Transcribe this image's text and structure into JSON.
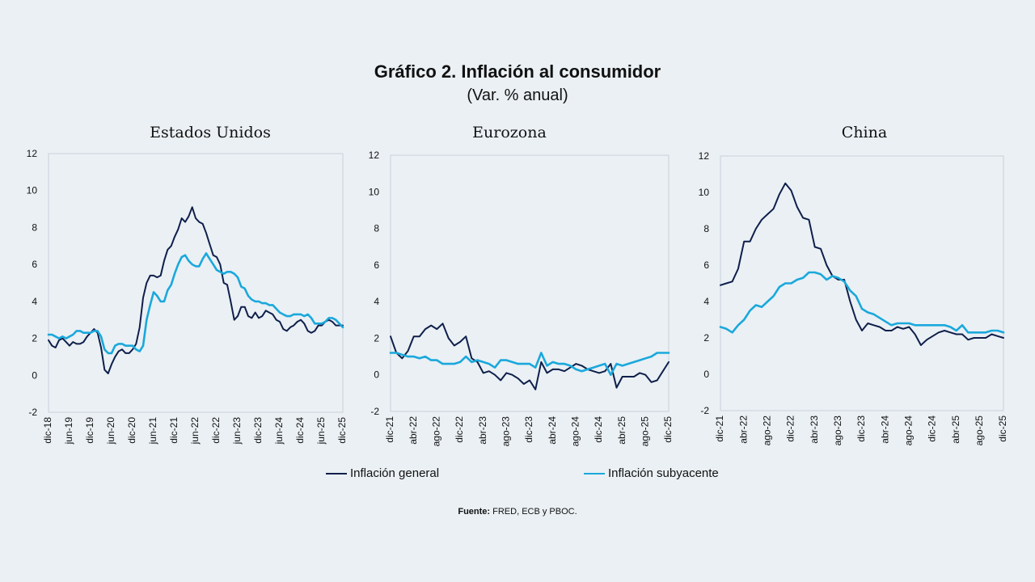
{
  "header": {
    "title": "Gráfico 2. Inflación al consumidor",
    "subtitle": "(Var. % anual)"
  },
  "legend": {
    "general": "Inflación general",
    "core": "Inflación subyacente"
  },
  "source": {
    "label": "Fuente:",
    "text": " FRED, ECB y PBOC."
  },
  "colors": {
    "general": "#0f1f4b",
    "core": "#1aa8dc",
    "background": "#eaf0f4",
    "plot_border": "#c9d1d8"
  },
  "chart_data": [
    {
      "type": "line",
      "title": "Estados Unidos",
      "ylim": [
        -2,
        12
      ],
      "yticks": [
        -2,
        0,
        2,
        4,
        6,
        8,
        10,
        12
      ],
      "x_start": "dic-18",
      "x_end": "dic-25",
      "n_months": 85,
      "xtick_labels": [
        "dic-18",
        "jun-19",
        "dic-19",
        "jun-20",
        "dic-20",
        "jun-21",
        "dic-21",
        "jun-22",
        "dic-22",
        "jun-23",
        "dic-23",
        "jun-24",
        "dic-24",
        "jun-25",
        "dic-25"
      ],
      "grid": false,
      "series": [
        {
          "name": "Inflación general",
          "values": [
            1.9,
            1.6,
            1.5,
            1.9,
            2.0,
            1.8,
            1.6,
            1.8,
            1.7,
            1.7,
            1.8,
            2.1,
            2.3,
            2.5,
            2.3,
            1.5,
            0.3,
            0.1,
            0.6,
            1.0,
            1.3,
            1.4,
            1.2,
            1.2,
            1.4,
            1.7,
            2.6,
            4.2,
            5.0,
            5.4,
            5.4,
            5.3,
            5.4,
            6.2,
            6.8,
            7.0,
            7.5,
            7.9,
            8.5,
            8.3,
            8.6,
            9.1,
            8.5,
            8.3,
            8.2,
            7.7,
            7.1,
            6.5,
            6.4,
            6.0,
            5.0,
            4.9,
            4.0,
            3.0,
            3.2,
            3.7,
            3.7,
            3.2,
            3.1,
            3.4,
            3.1,
            3.2,
            3.5,
            3.4,
            3.3,
            3.0,
            2.9,
            2.5,
            2.4,
            2.6,
            2.7,
            2.9,
            3.0,
            2.8,
            2.4,
            2.3,
            2.4,
            2.7,
            2.7,
            2.9,
            3.0,
            2.9,
            2.7,
            2.7,
            2.7
          ]
        },
        {
          "name": "Inflación subyacente",
          "values": [
            2.2,
            2.2,
            2.1,
            2.0,
            2.1,
            2.0,
            2.1,
            2.2,
            2.4,
            2.4,
            2.3,
            2.3,
            2.3,
            2.4,
            2.4,
            2.1,
            1.4,
            1.2,
            1.2,
            1.6,
            1.7,
            1.7,
            1.6,
            1.6,
            1.6,
            1.4,
            1.3,
            1.6,
            3.0,
            3.8,
            4.5,
            4.3,
            4.0,
            4.0,
            4.6,
            4.9,
            5.5,
            6.0,
            6.4,
            6.5,
            6.2,
            6.0,
            5.9,
            5.9,
            6.3,
            6.6,
            6.3,
            6.0,
            5.7,
            5.6,
            5.5,
            5.6,
            5.6,
            5.5,
            5.3,
            4.8,
            4.7,
            4.3,
            4.1,
            4.0,
            4.0,
            3.9,
            3.9,
            3.8,
            3.8,
            3.6,
            3.4,
            3.3,
            3.2,
            3.2,
            3.3,
            3.3,
            3.3,
            3.2,
            3.3,
            3.1,
            2.8,
            2.8,
            2.8,
            2.9,
            3.1,
            3.1,
            3.0,
            2.8,
            2.6
          ]
        }
      ]
    },
    {
      "type": "line",
      "title": "Eurozona",
      "ylim": [
        -2,
        12
      ],
      "yticks": [
        -2,
        0,
        2,
        4,
        6,
        8,
        10,
        12
      ],
      "x_start": "dic-21",
      "x_end": "dic-25",
      "n_months": 49,
      "xtick_labels": [
        "dic-21",
        "abr-22",
        "ago-22",
        "dic-22",
        "abr-23",
        "ago-23",
        "dic-23",
        "abr-24",
        "ago-24",
        "dic-24",
        "abr-25",
        "ago-25",
        "dic-25"
      ],
      "grid": false,
      "series": [
        {
          "name": "Inflación general",
          "values": [
            2.1,
            1.2,
            0.9,
            1.3,
            2.1,
            2.1,
            2.5,
            2.7,
            2.5,
            2.8,
            2.0,
            1.6,
            1.8,
            2.1,
            0.9,
            0.7,
            0.1,
            0.2,
            0.0,
            -0.3,
            0.1,
            0.0,
            -0.2,
            -0.5,
            -0.3,
            -0.8,
            0.7,
            0.1,
            0.3,
            0.3,
            0.2,
            0.4,
            0.6,
            0.5,
            0.3,
            0.2,
            0.1,
            0.2,
            0.6,
            -0.7,
            -0.1,
            -0.1,
            -0.1,
            0.1,
            0.0,
            -0.4,
            -0.3,
            0.2,
            0.7
          ]
        },
        {
          "name": "Inflación subyacente",
          "values": [
            1.2,
            1.2,
            1.1,
            1.0,
            1.0,
            0.9,
            1.0,
            0.8,
            0.8,
            0.6,
            0.6,
            0.6,
            0.7,
            1.0,
            0.7,
            0.8,
            0.7,
            0.6,
            0.4,
            0.8,
            0.8,
            0.7,
            0.6,
            0.6,
            0.6,
            0.4,
            1.2,
            0.5,
            0.7,
            0.6,
            0.6,
            0.5,
            0.3,
            0.2,
            0.3,
            0.4,
            0.5,
            0.6,
            0.0,
            0.6,
            0.5,
            0.6,
            0.7,
            0.8,
            0.9,
            1.0,
            1.2,
            1.2,
            1.2
          ]
        }
      ]
    },
    {
      "type": "line",
      "title": "China",
      "ylim": [
        -2,
        12
      ],
      "yticks": [
        -2,
        0,
        2,
        4,
        6,
        8,
        10,
        12
      ],
      "x_start": "dic-21",
      "x_end": "dic-25",
      "n_months": 49,
      "xtick_labels": [
        "dic-21",
        "abr-22",
        "ago-22",
        "dic-22",
        "abr-23",
        "ago-23",
        "dic-23",
        "abr-24",
        "ago-24",
        "dic-24",
        "abr-25",
        "ago-25",
        "dic-25"
      ],
      "grid": false,
      "series": [
        {
          "name": "Inflación general",
          "values": [
            4.9,
            5.0,
            5.1,
            5.8,
            7.3,
            7.3,
            8.0,
            8.5,
            8.8,
            9.1,
            9.9,
            10.5,
            10.1,
            9.2,
            8.6,
            8.5,
            7.0,
            6.9,
            6.0,
            5.4,
            5.2,
            5.2,
            4.0,
            3.0,
            2.4,
            2.8,
            2.7,
            2.6,
            2.4,
            2.4,
            2.6,
            2.5,
            2.6,
            2.2,
            1.6,
            1.9,
            2.1,
            2.3,
            2.4,
            2.3,
            2.2,
            2.2,
            1.9,
            2.0,
            2.0,
            2.0,
            2.2,
            2.1,
            2.0
          ]
        },
        {
          "name": "Inflación subyacente",
          "values": [
            2.6,
            2.5,
            2.3,
            2.7,
            3.0,
            3.5,
            3.8,
            3.7,
            4.0,
            4.3,
            4.8,
            5.0,
            5.0,
            5.2,
            5.3,
            5.6,
            5.6,
            5.5,
            5.2,
            5.4,
            5.3,
            5.1,
            4.6,
            4.3,
            3.6,
            3.4,
            3.3,
            3.1,
            2.9,
            2.7,
            2.8,
            2.8,
            2.8,
            2.7,
            2.7,
            2.7,
            2.7,
            2.7,
            2.7,
            2.6,
            2.4,
            2.7,
            2.3,
            2.3,
            2.3,
            2.3,
            2.4,
            2.4,
            2.3
          ]
        }
      ]
    }
  ]
}
